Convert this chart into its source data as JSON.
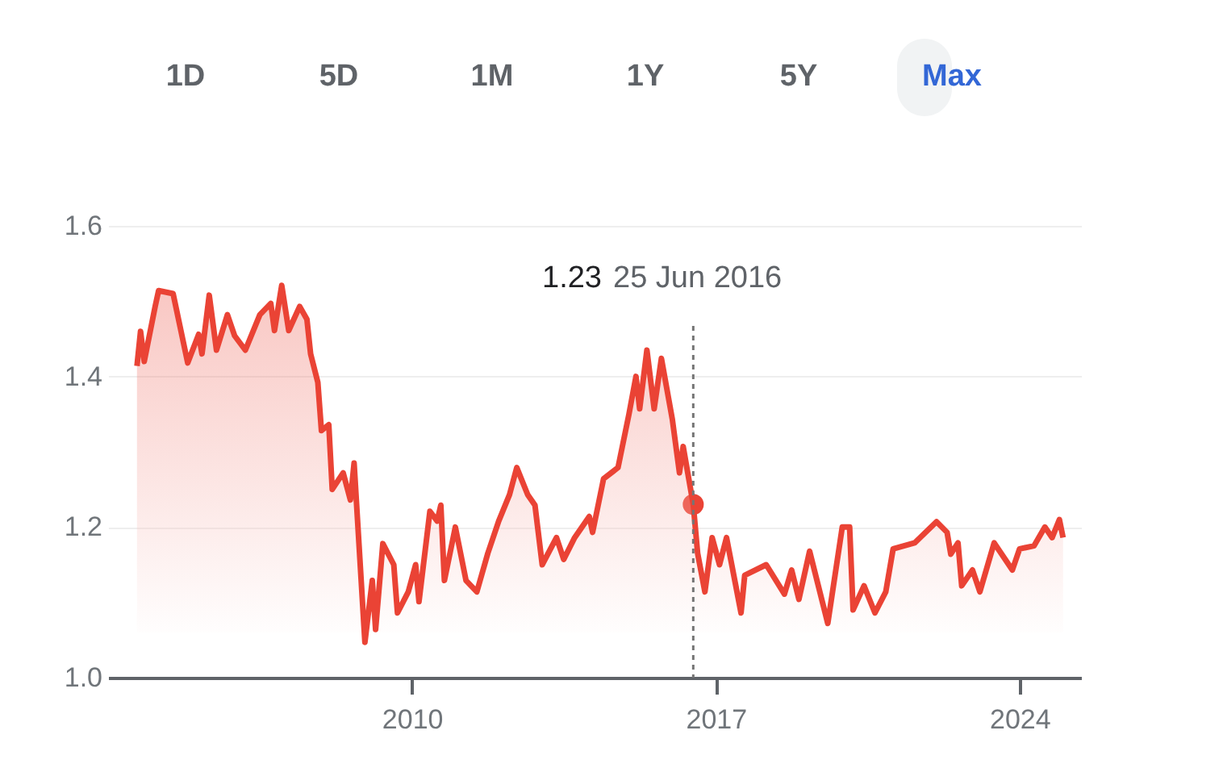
{
  "chart_data": {
    "type": "area",
    "x": [
      "2003-09",
      "2003-10",
      "2003-11",
      "2004-02",
      "2004-03",
      "2004-07",
      "2004-11",
      "2005-02",
      "2005-03",
      "2005-05",
      "2005-07",
      "2005-10",
      "2005-12",
      "2006-03",
      "2006-07",
      "2006-10",
      "2006-11",
      "2007-01",
      "2007-03",
      "2007-06",
      "2007-08",
      "2007-09",
      "2007-11",
      "2007-12",
      "2008-02",
      "2008-03",
      "2008-06",
      "2008-08",
      "2008-09",
      "2008-12",
      "2009-02",
      "2009-03",
      "2009-05",
      "2009-08",
      "2009-09",
      "2009-12",
      "2010-02",
      "2010-03",
      "2010-06",
      "2010-08",
      "2010-09",
      "2010-10",
      "2011-01",
      "2011-04",
      "2011-07",
      "2011-10",
      "2012-01",
      "2012-04",
      "2012-06",
      "2012-09",
      "2012-11",
      "2013-01",
      "2013-05",
      "2013-07",
      "2013-10",
      "2014-02",
      "2014-03",
      "2014-06",
      "2014-10",
      "2015-01",
      "2015-03",
      "2015-04",
      "2015-06",
      "2015-08",
      "2015-10",
      "2016-01",
      "2016-03",
      "2016-04",
      "2016-06-25",
      "2016-08",
      "2016-10",
      "2016-12",
      "2017-02",
      "2017-04",
      "2017-08",
      "2017-09",
      "2018-03",
      "2018-08",
      "2018-10",
      "2018-12",
      "2019-03",
      "2019-08",
      "2019-12",
      "2020-02",
      "2020-03",
      "2020-06",
      "2020-09",
      "2020-12",
      "2021-02",
      "2021-08",
      "2022-02",
      "2022-05",
      "2022-06",
      "2022-08",
      "2022-09",
      "2022-12",
      "2023-02",
      "2023-06",
      "2023-11",
      "2024-01",
      "2024-05",
      "2024-08",
      "2024-10",
      "2024-12",
      "2025-01"
    ],
    "series": [
      {
        "type": "scatter",
        "x": [
          "2016-06-25"
        ],
        "values": [
          1.23
        ],
        "color": "#ea4335",
        "marker": "circle"
      },
      {
        "color": "#ea4335",
        "values": [
          1.414,
          1.46,
          1.42,
          1.493,
          1.514,
          1.51,
          1.418,
          1.456,
          1.43,
          1.508,
          1.435,
          1.482,
          1.454,
          1.435,
          1.482,
          1.497,
          1.461,
          1.521,
          1.461,
          1.493,
          1.476,
          1.43,
          1.392,
          1.328,
          1.336,
          1.25,
          1.272,
          1.236,
          1.285,
          1.047,
          1.129,
          1.064,
          1.178,
          1.15,
          1.086,
          1.114,
          1.15,
          1.101,
          1.221,
          1.208,
          1.229,
          1.129,
          1.2,
          1.129,
          1.114,
          1.165,
          1.208,
          1.243,
          1.279,
          1.243,
          1.229,
          1.15,
          1.186,
          1.157,
          1.186,
          1.214,
          1.193,
          1.264,
          1.279,
          1.35,
          1.4,
          1.357,
          1.435,
          1.357,
          1.424,
          1.343,
          1.272,
          1.307,
          1.23,
          1.165,
          1.114,
          1.186,
          1.15,
          1.186,
          1.086,
          1.136,
          1.15,
          1.111,
          1.143,
          1.104,
          1.168,
          1.072,
          1.2,
          1.2,
          1.09,
          1.122,
          1.086,
          1.114,
          1.171,
          1.179,
          1.207,
          1.193,
          1.164,
          1.179,
          1.122,
          1.143,
          1.114,
          1.179,
          1.143,
          1.171,
          1.175,
          1.2,
          1.186,
          1.21,
          1.186
        ]
      }
    ],
    "xlim": [
      "2003-01",
      "2025-06"
    ],
    "xticks": [
      "2010",
      "2017",
      "2024"
    ],
    "ylim": [
      1.0,
      1.6
    ],
    "yticks": [
      {
        "value": 1.0,
        "label": "1.0"
      },
      1.2,
      1.4,
      1.6
    ],
    "grid": "y",
    "marker": "none",
    "line_style": "solid",
    "ref_lines": [
      {
        "axis": "x",
        "value": "2016-06-25",
        "line_style": "dotted",
        "color": "#757575"
      }
    ],
    "annotations": [
      "1D",
      "5D",
      "1M",
      "1Y",
      "5Y",
      "Max",
      "1.23",
      "25 Jun 2016"
    ]
  }
}
